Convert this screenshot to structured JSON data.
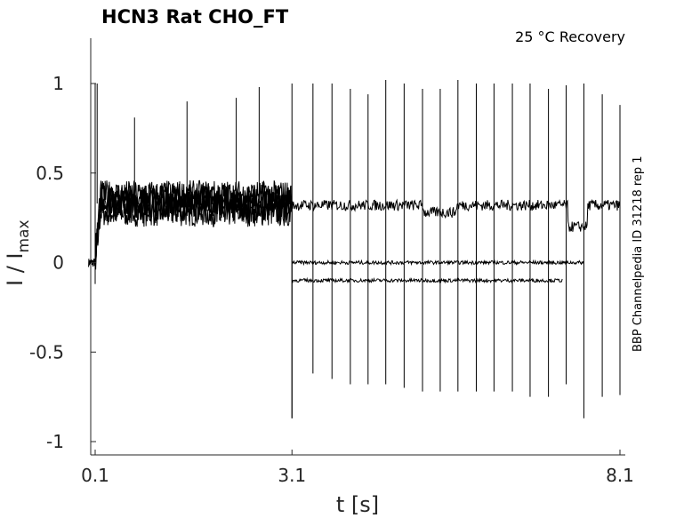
{
  "chart_data": {
    "type": "line",
    "title": "HCN3  Rat  CHO_FT",
    "annotation": "25 °C  Recovery",
    "side_label": "BBP Channelpedia ID 31218 rep 1",
    "xlabel": "t [s]",
    "ylabel_main": "I / I",
    "ylabel_sub": "max",
    "xlim": [
      0.0,
      8.2
    ],
    "ylim": [
      -1.08,
      1.25
    ],
    "x_ticks": [
      {
        "value": 0.1,
        "label": "0.1"
      },
      {
        "value": 3.1,
        "label": "3.1"
      },
      {
        "value": 8.1,
        "label": "8.1"
      }
    ],
    "y_ticks": [
      {
        "value": 1,
        "label": "1"
      },
      {
        "value": 0.5,
        "label": "0.5"
      },
      {
        "value": 0,
        "label": "0"
      },
      {
        "value": -0.5,
        "label": "-0.5"
      },
      {
        "value": -1,
        "label": "-1"
      }
    ],
    "grid": false,
    "legend": "none",
    "color": "#000000",
    "conditioning": {
      "start": 0.1,
      "end": 3.1,
      "level": 0.33
    },
    "recovery_pulses": [
      {
        "t": 3.1,
        "peak": 1.0,
        "trough": -0.87
      },
      {
        "t": 3.42,
        "peak": 1.0,
        "trough": -0.62
      },
      {
        "t": 3.71,
        "peak": 1.0,
        "trough": -0.65
      },
      {
        "t": 3.99,
        "peak": 0.97,
        "trough": -0.68
      },
      {
        "t": 4.26,
        "peak": 0.94,
        "trough": -0.68
      },
      {
        "t": 4.53,
        "peak": 1.02,
        "trough": -0.68
      },
      {
        "t": 4.81,
        "peak": 1.0,
        "trough": -0.7
      },
      {
        "t": 5.09,
        "peak": 0.97,
        "trough": -0.72
      },
      {
        "t": 5.36,
        "peak": 0.97,
        "trough": -0.72
      },
      {
        "t": 5.63,
        "peak": 1.02,
        "trough": -0.72
      },
      {
        "t": 5.91,
        "peak": 1.0,
        "trough": -0.72
      },
      {
        "t": 6.18,
        "peak": 1.0,
        "trough": -0.72
      },
      {
        "t": 6.46,
        "peak": 1.0,
        "trough": -0.72
      },
      {
        "t": 6.73,
        "peak": 1.0,
        "trough": -0.75
      },
      {
        "t": 7.01,
        "peak": 0.97,
        "trough": -0.75
      },
      {
        "t": 7.28,
        "peak": 0.99,
        "trough": -0.68
      },
      {
        "t": 7.55,
        "peak": 1.0,
        "trough": -0.87
      },
      {
        "t": 7.83,
        "peak": 0.94,
        "trough": -0.75
      },
      {
        "t": 8.1,
        "peak": 0.88,
        "trough": -0.74
      }
    ],
    "post_levels": [
      {
        "name": "upper",
        "level": 0.32,
        "end": 8.1
      },
      {
        "name": "middle",
        "level": 0.0,
        "end": 7.55
      },
      {
        "name": "lower",
        "level": -0.1,
        "end": 7.22
      }
    ],
    "conditioning_spikes": [
      {
        "t": 0.13,
        "peak": 1.0
      },
      {
        "t": 0.7,
        "peak": 0.81
      },
      {
        "t": 1.5,
        "peak": 0.9
      },
      {
        "t": 2.25,
        "peak": 0.92
      },
      {
        "t": 2.6,
        "peak": 0.98
      }
    ]
  }
}
